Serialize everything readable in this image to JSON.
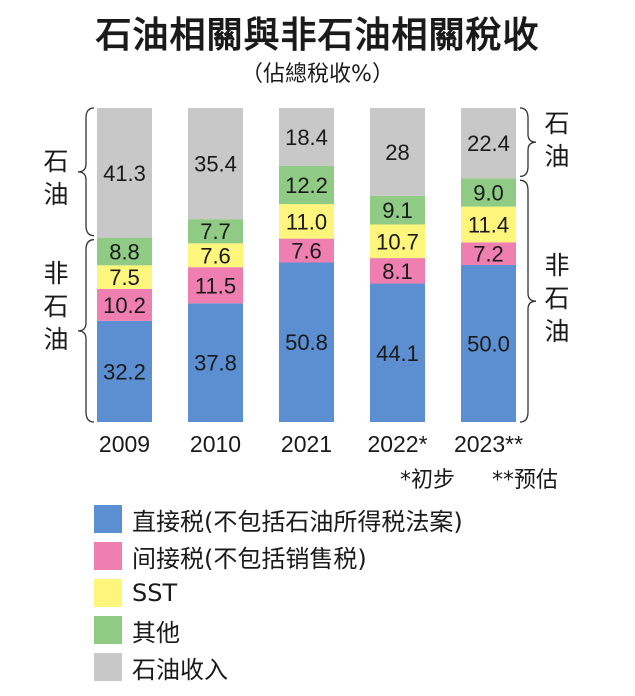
{
  "title": "石油相關與非石油相關稅收",
  "subtitle": "（佔總稅收%）",
  "notes": {
    "prelim": "*初步",
    "estimate": "**预估"
  },
  "side_labels": {
    "oil": "石油",
    "non_oil": "非石油"
  },
  "colors": {
    "direct": "#5b8fd1",
    "indirect": "#ee7fb0",
    "sst": "#fdf57c",
    "other": "#8fcb85",
    "oil": "#c8c8c8"
  },
  "chart_data": {
    "type": "bar",
    "stacked": true,
    "categories": [
      "2009",
      "2010",
      "2021",
      "2022*",
      "2023**"
    ],
    "ylim": [
      0,
      100
    ],
    "series": [
      {
        "key": "direct",
        "name": "直接税(不包括石油所得税法案)",
        "values": [
          32.2,
          37.8,
          50.8,
          44.1,
          50.0
        ],
        "labels": [
          "32.2",
          "37.8",
          "50.8",
          "44.1",
          "50.0"
        ]
      },
      {
        "key": "indirect",
        "name": "间接税(不包括销售税)",
        "values": [
          10.2,
          11.5,
          7.6,
          8.1,
          7.2
        ],
        "labels": [
          "10.2",
          "11.5",
          "7.6",
          "8.1",
          "7.2"
        ]
      },
      {
        "key": "sst",
        "name": "SST",
        "values": [
          7.5,
          7.6,
          11.0,
          10.7,
          11.4
        ],
        "labels": [
          "7.5",
          "7.6",
          "11.0",
          "10.7",
          "11.4"
        ]
      },
      {
        "key": "other",
        "name": "其他",
        "values": [
          8.8,
          7.7,
          12.2,
          9.1,
          9.0
        ],
        "labels": [
          "8.8",
          "7.7",
          "12.2",
          "9.1",
          "9.0"
        ]
      },
      {
        "key": "oil",
        "name": "石油收入",
        "values": [
          41.3,
          35.4,
          18.4,
          28,
          22.4
        ],
        "labels": [
          "41.3",
          "35.4",
          "18.4",
          "28",
          "22.4"
        ]
      }
    ],
    "title": "石油相關與非石油相關稅收",
    "ylabel": "",
    "legend_position": "bottom"
  }
}
